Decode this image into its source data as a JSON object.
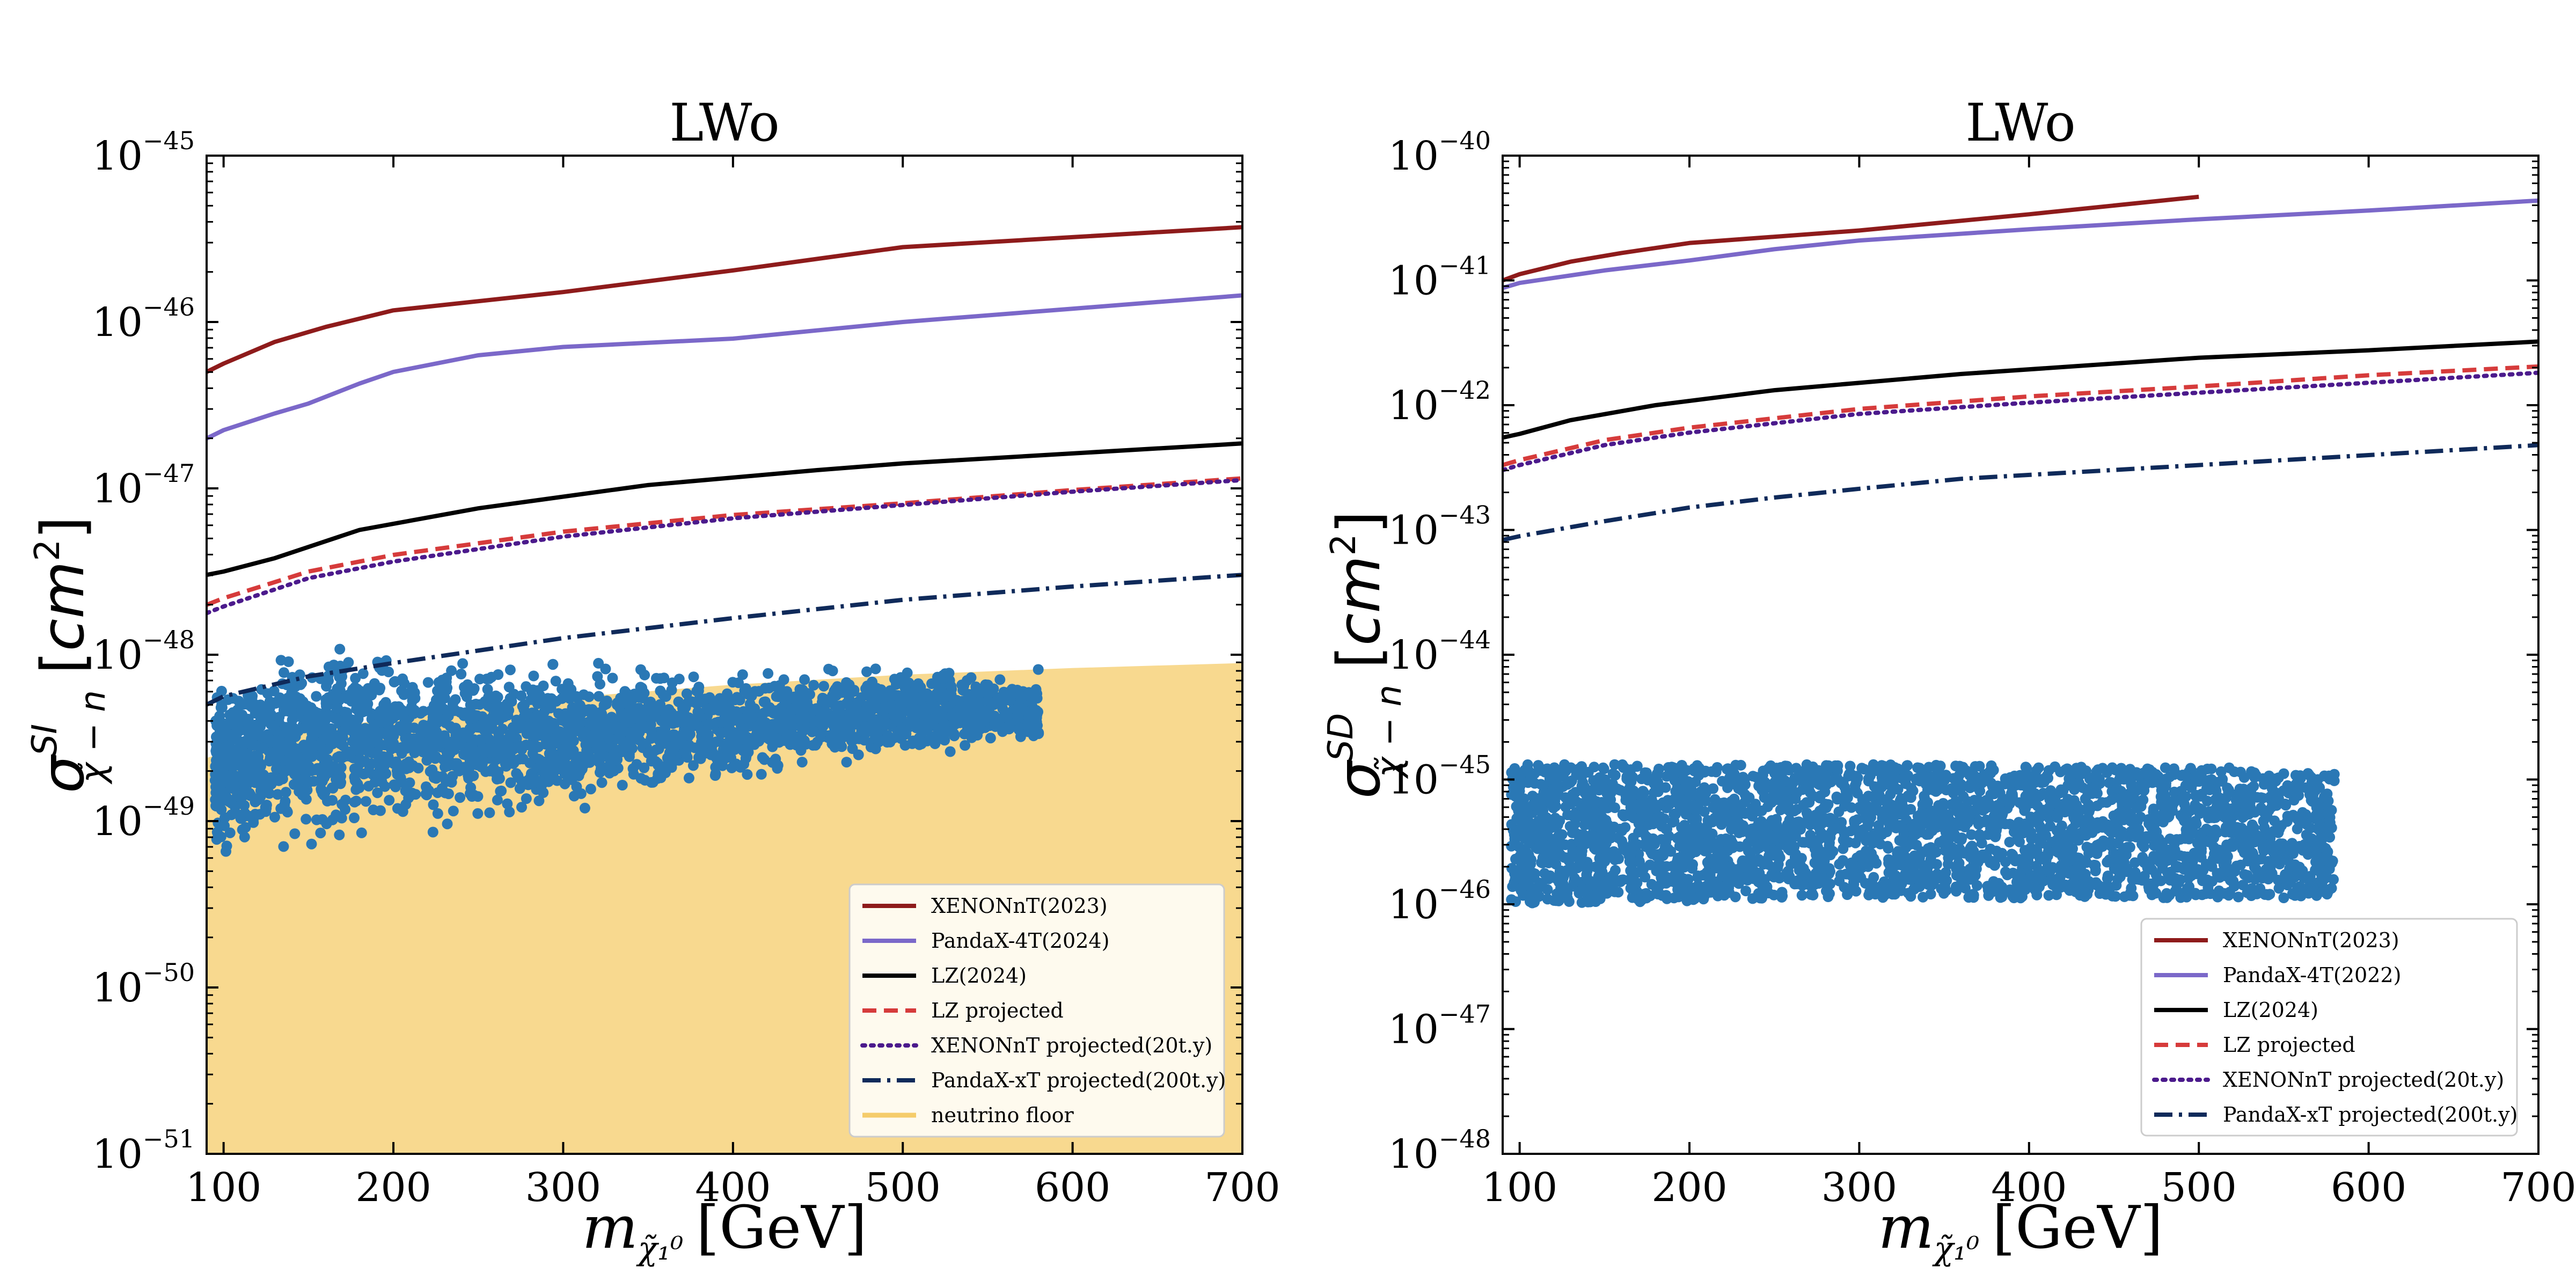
{
  "chart_data": [
    {
      "type": "scatter",
      "title": "LWo",
      "xlabel": "m_{χ̃₁⁰} [GeV]",
      "xlabel_main": "m",
      "xlabel_sub": "χ̃₁⁰",
      "xlabel_unit": "[GeV]",
      "ylabel": "σ^{SI}_{χ̃−n} [cm²]",
      "ylabel_sup": "SI",
      "xlim": [
        90,
        700
      ],
      "ylim_log10": [
        -51,
        -45
      ],
      "x_ticks": [
        "100",
        "200",
        "300",
        "400",
        "500",
        "600",
        "700"
      ],
      "y_tick_exponents": [
        "-51",
        "-50",
        "-49",
        "-48",
        "-47",
        "-46",
        "-45"
      ],
      "legend_position": "lower right",
      "series": [
        {
          "name": "XENONnT(2023)",
          "color": "#8e1b1b",
          "style": "solid",
          "x": [
            90,
            100,
            130,
            160,
            200,
            300,
            400,
            500,
            600,
            700
          ],
          "y_log10": [
            -46.3,
            -46.25,
            -46.12,
            -46.03,
            -45.93,
            -45.82,
            -45.69,
            -45.55,
            -45.49,
            -45.43
          ]
        },
        {
          "name": "PandaX-4T(2024)",
          "color": "#7b68c9",
          "style": "solid",
          "x": [
            90,
            100,
            130,
            150,
            180,
            200,
            250,
            300,
            400,
            500,
            600,
            700
          ],
          "y_log10": [
            -46.7,
            -46.65,
            -46.55,
            -46.49,
            -46.37,
            -46.3,
            -46.2,
            -46.15,
            -46.1,
            -46.0,
            -45.92,
            -45.84
          ]
        },
        {
          "name": "LZ(2024)",
          "color": "#000000",
          "style": "solid",
          "x": [
            90,
            100,
            130,
            180,
            250,
            350,
            450,
            500,
            600,
            700
          ],
          "y_log10": [
            -47.52,
            -47.5,
            -47.42,
            -47.25,
            -47.12,
            -46.98,
            -46.89,
            -46.85,
            -46.79,
            -46.73
          ]
        },
        {
          "name": "LZ projected",
          "color": "#d63b3b",
          "style": "dashed",
          "x": [
            90,
            100,
            150,
            200,
            300,
            400,
            500,
            600,
            700
          ],
          "y_log10": [
            -47.7,
            -47.66,
            -47.5,
            -47.4,
            -47.26,
            -47.16,
            -47.09,
            -47.01,
            -46.94
          ]
        },
        {
          "name": "XENONnT projected(20t.y)",
          "color": "#4b1a8c",
          "style": "dotted",
          "x": [
            90,
            100,
            150,
            200,
            300,
            400,
            500,
            600,
            700
          ],
          "y_log10": [
            -47.75,
            -47.71,
            -47.54,
            -47.44,
            -47.29,
            -47.18,
            -47.1,
            -47.02,
            -46.95
          ]
        },
        {
          "name": "PandaX-xT projected(200t.y)",
          "color": "#0f2a5a",
          "style": "dashdot",
          "x": [
            90,
            100,
            150,
            200,
            300,
            400,
            500,
            600,
            700
          ],
          "y_log10": [
            -48.3,
            -48.25,
            -48.13,
            -48.05,
            -47.9,
            -47.78,
            -47.67,
            -47.59,
            -47.52
          ]
        },
        {
          "name": "neutrino floor",
          "color": "#f5cc6a",
          "style": "fill",
          "x": [
            90,
            100,
            150,
            200,
            300,
            400,
            500,
            600,
            700
          ],
          "y_log10": [
            -48.62,
            -48.59,
            -48.46,
            -48.38,
            -48.26,
            -48.18,
            -48.12,
            -48.08,
            -48.05
          ]
        }
      ],
      "scatter_region": {
        "color": "#2a78b5",
        "x_range": [
          95,
          580
        ],
        "y_low_log10_at_x": [
          [
            95,
            -49.3
          ],
          [
            200,
            -49.15
          ],
          [
            300,
            -49.0
          ],
          [
            400,
            -48.8
          ],
          [
            500,
            -48.65
          ],
          [
            560,
            -48.6
          ]
        ],
        "y_high_log10_at_x": [
          [
            95,
            -48.1
          ],
          [
            160,
            -47.8
          ],
          [
            250,
            -47.95
          ],
          [
            400,
            -48.05
          ],
          [
            560,
            -48.05
          ]
        ]
      }
    },
    {
      "type": "scatter",
      "title": "LWo",
      "xlabel": "m_{χ̃₁⁰} [GeV]",
      "xlabel_main": "m",
      "xlabel_sub": "χ̃₁⁰",
      "xlabel_unit": "[GeV]",
      "ylabel": "σ^{SD}_{χ̃−n} [cm²]",
      "ylabel_sup": "SD",
      "xlim": [
        90,
        700
      ],
      "ylim_log10": [
        -48,
        -40
      ],
      "x_ticks": [
        "100",
        "200",
        "300",
        "400",
        "500",
        "600",
        "700"
      ],
      "y_tick_exponents": [
        "-48",
        "-47",
        "-46",
        "-45",
        "-44",
        "-43",
        "-42",
        "-41",
        "-40"
      ],
      "legend_position": "lower right",
      "series": [
        {
          "name": "XENONnT(2023)",
          "color": "#8e1b1b",
          "style": "solid",
          "x": [
            90,
            100,
            130,
            160,
            200,
            300,
            400,
            500
          ],
          "y_log10": [
            -41.0,
            -40.95,
            -40.85,
            -40.78,
            -40.7,
            -40.6,
            -40.47,
            -40.33
          ]
        },
        {
          "name": "PandaX-4T(2022)",
          "color": "#7b68c9",
          "style": "solid",
          "x": [
            90,
            100,
            150,
            200,
            250,
            300,
            400,
            500,
            600,
            700
          ],
          "y_log10": [
            -41.06,
            -41.02,
            -40.92,
            -40.84,
            -40.75,
            -40.68,
            -40.59,
            -40.51,
            -40.44,
            -40.36
          ]
        },
        {
          "name": "LZ(2024)",
          "color": "#000000",
          "style": "solid",
          "x": [
            90,
            100,
            130,
            180,
            250,
            360,
            500,
            600,
            700
          ],
          "y_log10": [
            -42.26,
            -42.23,
            -42.12,
            -42.0,
            -41.88,
            -41.75,
            -41.62,
            -41.56,
            -41.49
          ]
        },
        {
          "name": "LZ projected",
          "color": "#d63b3b",
          "style": "dashed",
          "x": [
            90,
            100,
            150,
            200,
            300,
            400,
            500,
            600,
            700
          ],
          "y_log10": [
            -42.48,
            -42.44,
            -42.28,
            -42.18,
            -42.03,
            -41.93,
            -41.85,
            -41.76,
            -41.69
          ]
        },
        {
          "name": "XENONnT projected(20t.y)",
          "color": "#4b1a8c",
          "style": "dotted",
          "x": [
            90,
            100,
            150,
            200,
            300,
            400,
            500,
            600,
            700
          ],
          "y_log10": [
            -42.52,
            -42.48,
            -42.32,
            -42.22,
            -42.07,
            -41.98,
            -41.9,
            -41.82,
            -41.74
          ]
        },
        {
          "name": "PandaX-xT projected(200t.y)",
          "color": "#0f2a5a",
          "style": "dashdot",
          "x": [
            90,
            100,
            150,
            200,
            250,
            300,
            360,
            500,
            600,
            700
          ],
          "y_log10": [
            -43.08,
            -43.05,
            -42.93,
            -42.82,
            -42.74,
            -42.67,
            -42.59,
            -42.48,
            -42.4,
            -42.32
          ]
        }
      ],
      "scatter_region": {
        "color": "#2a78b5",
        "x_range": [
          95,
          580
        ],
        "y_low_log10_at_x": [
          [
            95,
            -46.0
          ],
          [
            300,
            -45.95
          ],
          [
            500,
            -45.95
          ],
          [
            575,
            -45.95
          ]
        ],
        "y_high_log10_at_x": [
          [
            95,
            -44.88
          ],
          [
            300,
            -44.88
          ],
          [
            520,
            -44.9
          ],
          [
            560,
            -44.95
          ]
        ]
      }
    }
  ]
}
